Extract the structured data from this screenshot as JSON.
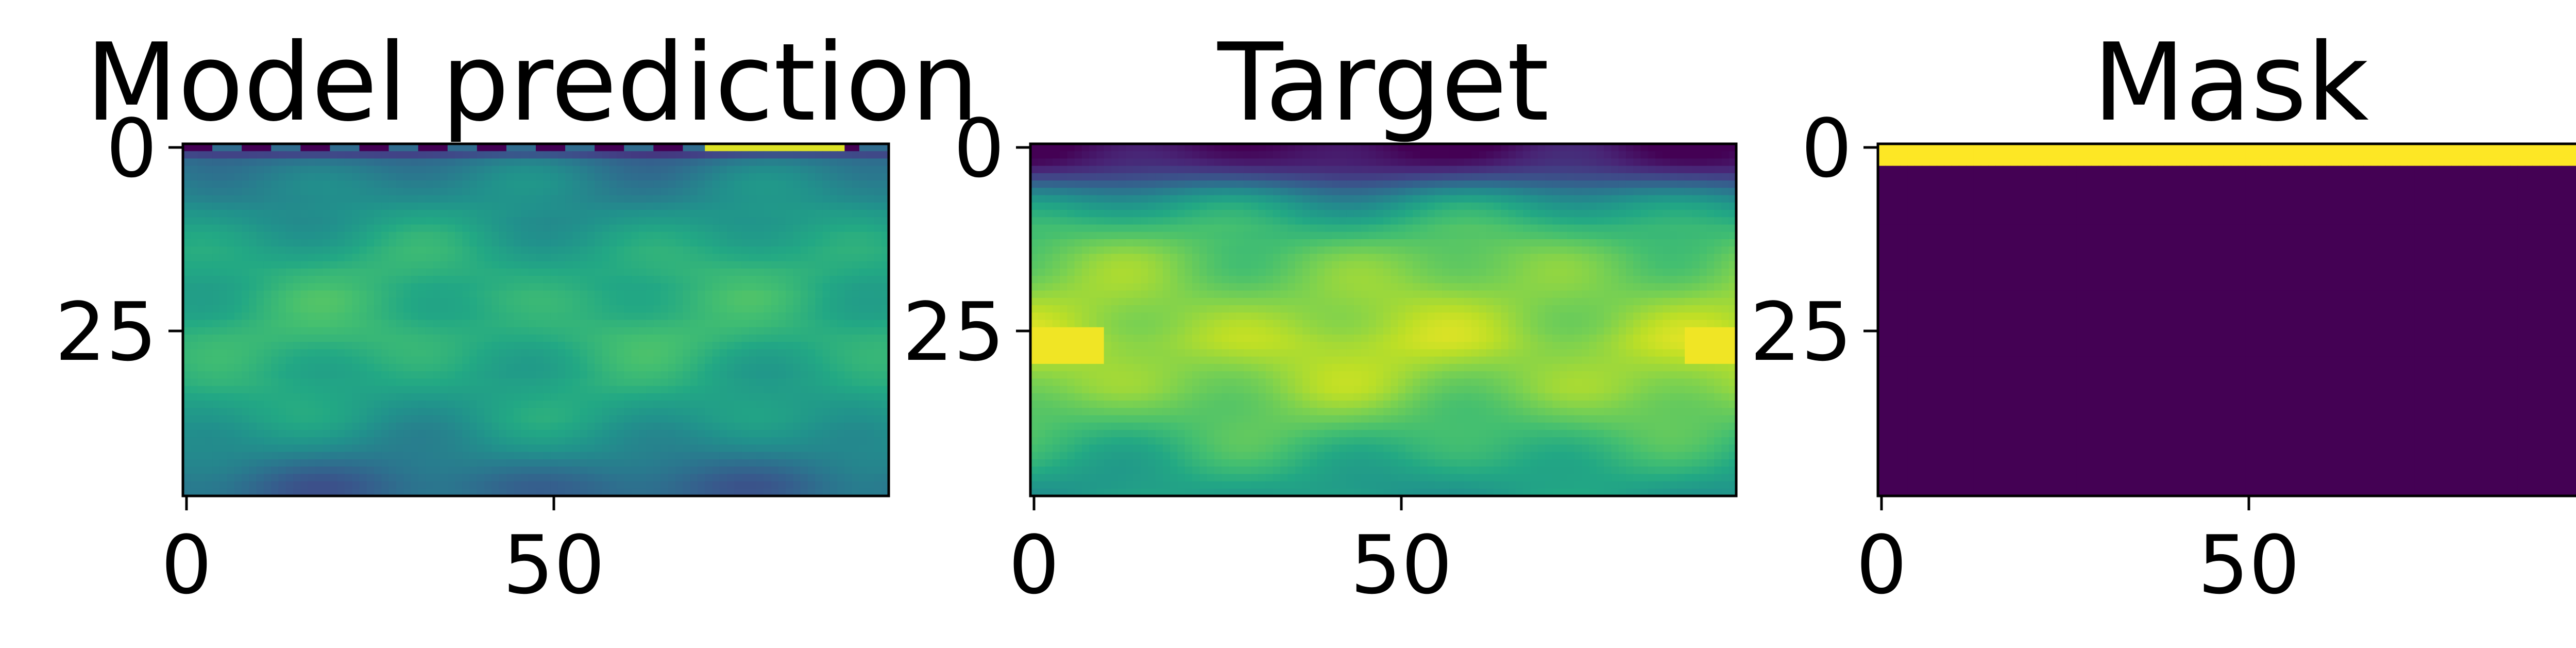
{
  "chart_data": [
    {
      "type": "heatmap",
      "title": "Model prediction",
      "xlabel": "",
      "ylabel": "",
      "colormap": "viridis",
      "xlim": [
        0,
        95
      ],
      "ylim": [
        47,
        0
      ],
      "x_ticks": [
        "0",
        "50"
      ],
      "y_ticks": [
        "0",
        "25"
      ],
      "grid": false,
      "description_values": {
        "rows": 48,
        "cols": 96,
        "row_profile": [
          0.03,
          0.22,
          0.38,
          0.42,
          0.44,
          0.46,
          0.47,
          0.48,
          0.5,
          0.52,
          0.53,
          0.55,
          0.57,
          0.58,
          0.6,
          0.61,
          0.62,
          0.63,
          0.63,
          0.63,
          0.64,
          0.64,
          0.64,
          0.64,
          0.65,
          0.65,
          0.65,
          0.64,
          0.63,
          0.62,
          0.61,
          0.6,
          0.6,
          0.59,
          0.58,
          0.57,
          0.56,
          0.55,
          0.53,
          0.51,
          0.49,
          0.47,
          0.44,
          0.41,
          0.38,
          0.35,
          0.33,
          0.33
        ]
      }
    },
    {
      "type": "heatmap",
      "title": "Target",
      "xlabel": "",
      "ylabel": "",
      "colormap": "viridis",
      "xlim": [
        0,
        95
      ],
      "ylim": [
        47,
        0
      ],
      "x_ticks": [
        "0",
        "50"
      ],
      "y_ticks": [
        "0",
        "25"
      ],
      "grid": false,
      "description_values": {
        "rows": 48,
        "cols": 96,
        "row_profile": [
          0.03,
          0.05,
          0.08,
          0.14,
          0.22,
          0.32,
          0.42,
          0.5,
          0.56,
          0.6,
          0.64,
          0.68,
          0.7,
          0.73,
          0.75,
          0.77,
          0.78,
          0.79,
          0.8,
          0.81,
          0.82,
          0.83,
          0.84,
          0.85,
          0.86,
          0.87,
          0.88,
          0.88,
          0.87,
          0.86,
          0.85,
          0.84,
          0.83,
          0.82,
          0.8,
          0.78,
          0.76,
          0.74,
          0.72,
          0.7,
          0.68,
          0.66,
          0.64,
          0.62,
          0.6,
          0.58,
          0.56,
          0.55
        ]
      }
    },
    {
      "type": "heatmap",
      "title": "Mask",
      "xlabel": "",
      "ylabel": "",
      "colormap": "viridis",
      "xlim": [
        0,
        95
      ],
      "ylim": [
        47,
        0
      ],
      "x_ticks": [
        "0",
        "50"
      ],
      "y_ticks": [
        "0",
        "25"
      ],
      "grid": false,
      "description_values": {
        "rows": 48,
        "cols": 96,
        "masked_rows": [
          0,
          1,
          2
        ],
        "masked_value": 1,
        "unmasked_value": 0
      }
    }
  ]
}
